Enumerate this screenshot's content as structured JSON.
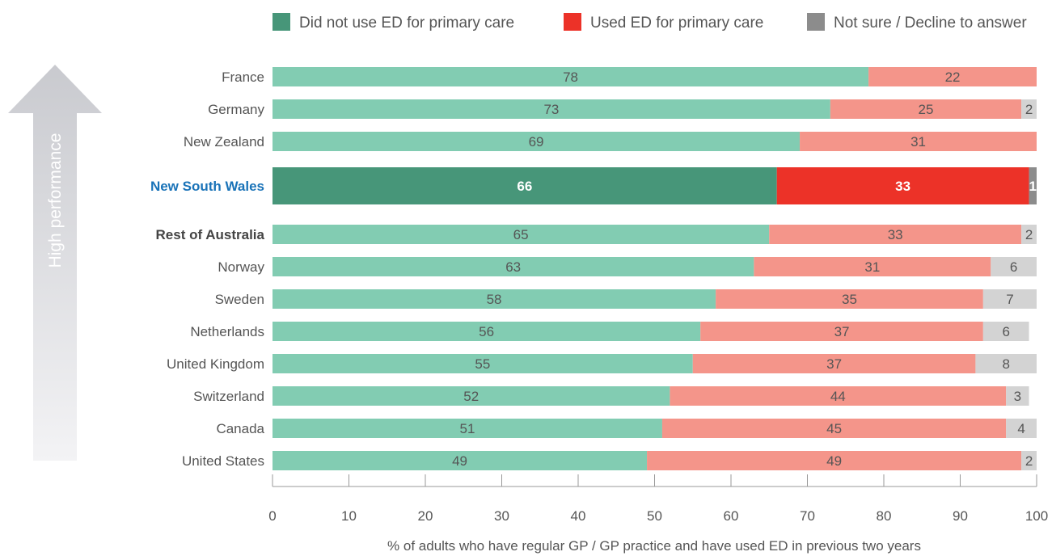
{
  "chart_data": {
    "type": "bar",
    "orientation": "horizontal",
    "stacked": true,
    "xlabel": "% of adults who have regular GP / GP practice and have used ED in previous two years",
    "xlim": [
      0,
      100
    ],
    "xticks": [
      0,
      10,
      20,
      30,
      40,
      50,
      60,
      70,
      80,
      90,
      100
    ],
    "side_label": "High performance",
    "legend_position": "top",
    "categories": [
      "France",
      "Germany",
      "New Zealand",
      "New South Wales",
      "Rest of Australia",
      "Norway",
      "Sweden",
      "Netherlands",
      "United Kingdom",
      "Switzerland",
      "Canada",
      "United States"
    ],
    "highlighted_category": "New South Wales",
    "bold_categories": [
      "Rest of Australia"
    ],
    "series": [
      {
        "name": "Did not use ED for primary care",
        "values": [
          78,
          73,
          69,
          66,
          65,
          63,
          58,
          56,
          55,
          52,
          51,
          49
        ]
      },
      {
        "name": "Used ED for primary care",
        "values": [
          22,
          25,
          31,
          33,
          33,
          31,
          35,
          37,
          37,
          44,
          45,
          49
        ]
      },
      {
        "name": "Not sure / Decline to answer",
        "values": [
          null,
          2,
          null,
          1,
          2,
          6,
          7,
          6,
          8,
          3,
          4,
          2
        ]
      }
    ],
    "colors": {
      "series": [
        "#82ccb2",
        "#f4958a",
        "#d3d3d3"
      ],
      "series_highlight": [
        "#479679",
        "#ec3228",
        "#8c8c8c"
      ],
      "legend": [
        "#479679",
        "#ec3228",
        "#8c8c8c"
      ],
      "highlight_label": "#1a73b8",
      "text": "#555555",
      "axis": "#999999",
      "arrow": "#d6d7db",
      "arrow_text": "#ffffff"
    }
  }
}
